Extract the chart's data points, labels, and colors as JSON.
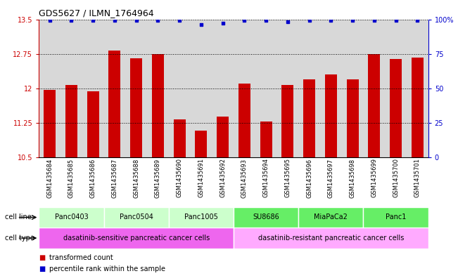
{
  "title": "GDS5627 / ILMN_1764964",
  "samples": [
    "GSM1435684",
    "GSM1435685",
    "GSM1435686",
    "GSM1435687",
    "GSM1435688",
    "GSM1435689",
    "GSM1435690",
    "GSM1435691",
    "GSM1435692",
    "GSM1435693",
    "GSM1435694",
    "GSM1435695",
    "GSM1435696",
    "GSM1435697",
    "GSM1435698",
    "GSM1435699",
    "GSM1435700",
    "GSM1435701"
  ],
  "bar_values": [
    11.97,
    12.07,
    11.93,
    12.82,
    12.65,
    12.75,
    11.32,
    11.08,
    11.38,
    12.1,
    11.28,
    12.07,
    12.2,
    12.3,
    12.2,
    12.74,
    12.63,
    12.67
  ],
  "percentile_values": [
    99,
    99,
    99,
    99,
    99,
    99,
    99,
    96,
    97,
    99,
    99,
    98,
    99,
    99,
    99,
    99,
    99,
    99
  ],
  "bar_color": "#cc0000",
  "percentile_color": "#0000cc",
  "ylim_left": [
    10.5,
    13.5
  ],
  "ylim_right": [
    0,
    100
  ],
  "yticks_left": [
    10.5,
    11.25,
    12.0,
    12.75,
    13.5
  ],
  "yticks_right": [
    0,
    25,
    50,
    75,
    100
  ],
  "cell_lines": [
    {
      "name": "Panc0403",
      "start": 0,
      "end": 2,
      "color": "#ccffcc"
    },
    {
      "name": "Panc0504",
      "start": 3,
      "end": 5,
      "color": "#ccffcc"
    },
    {
      "name": "Panc1005",
      "start": 6,
      "end": 8,
      "color": "#ccffcc"
    },
    {
      "name": "SU8686",
      "start": 9,
      "end": 11,
      "color": "#66ee66"
    },
    {
      "name": "MiaPaCa2",
      "start": 12,
      "end": 14,
      "color": "#66ee66"
    },
    {
      "name": "Panc1",
      "start": 15,
      "end": 17,
      "color": "#66ee66"
    }
  ],
  "cell_types": [
    {
      "name": "dasatinib-sensitive pancreatic cancer cells",
      "start": 0,
      "end": 8,
      "color": "#ee66ee"
    },
    {
      "name": "dasatinib-resistant pancreatic cancer cells",
      "start": 9,
      "end": 17,
      "color": "#ffaaff"
    }
  ],
  "legend_bar_label": "transformed count",
  "legend_dot_label": "percentile rank within the sample",
  "cell_line_label": "cell line",
  "cell_type_label": "cell type",
  "bar_width": 0.55,
  "background_color": "#ffffff",
  "tick_label_fontsize": 6.0,
  "axis_label_color_left": "#cc0000",
  "axis_label_color_right": "#0000cc",
  "col_bg_color": "#d8d8d8"
}
